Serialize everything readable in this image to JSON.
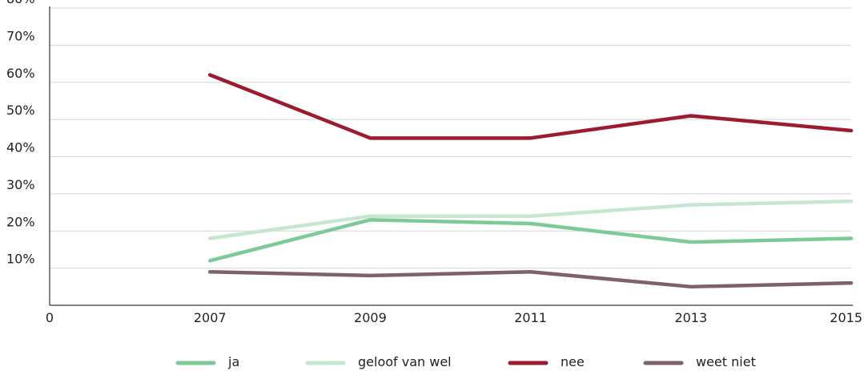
{
  "chart_data": {
    "type": "line",
    "x": [
      2007,
      2009,
      2011,
      2013,
      2015
    ],
    "x_tick_labels": [
      "0",
      "2007",
      "2009",
      "2011",
      "2013",
      "2015"
    ],
    "y_tick_labels": [
      "10%",
      "20%",
      "30%",
      "40%",
      "50%",
      "60%",
      "70%",
      "80%"
    ],
    "y_ticks": [
      10,
      20,
      30,
      40,
      50,
      60,
      70,
      80
    ],
    "ylim": [
      0,
      80
    ],
    "xlim": [
      2005,
      2015
    ],
    "grid": true,
    "legend_position": "bottom",
    "series": [
      {
        "name": "ja",
        "color": "#7ec99a",
        "values": [
          12,
          23,
          22,
          17,
          18
        ]
      },
      {
        "name": "geloof van wel",
        "color": "#c6e6d1",
        "values": [
          18,
          24,
          24,
          27,
          28
        ]
      },
      {
        "name": "nee",
        "color": "#9b1b30",
        "values": [
          62,
          45,
          45,
          51,
          47
        ]
      },
      {
        "name": "weet niet",
        "color": "#7d6369",
        "values": [
          9,
          8,
          9,
          5,
          6
        ]
      }
    ]
  }
}
